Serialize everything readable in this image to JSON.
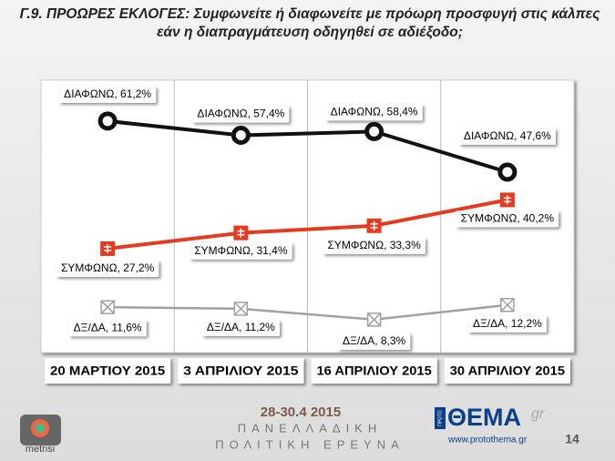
{
  "chart_data": {
    "type": "line",
    "title": "Γ.9. ΠΡΟΩΡΕΣ ΕΚΛΟΓΕΣ: Συμφωνείτε ή διαφωνείτε με πρόωρη προσφυγή στις κάλπες εάν η διαπραγμάτευση οδηγηθεί σε αδιέξοδο;",
    "categories": [
      "20 ΜΑΡΤΙΟΥ 2015",
      "3 ΑΠΡΙΛΙΟΥ 2015",
      "16 ΑΠΡΙΛΙΟΥ 2015",
      "30 ΑΠΡΙΛΙΟΥ 2015"
    ],
    "series": [
      {
        "name": "ΔΙΑΦΩΝΩ",
        "color": "#111111",
        "values": [
          61.2,
          57.4,
          58.4,
          47.6
        ],
        "value_labels": [
          "ΔΙΑΦΩΝΩ, 61,2%",
          "ΔΙΑΦΩΝΩ, 57,4%",
          "ΔΙΑΦΩΝΩ, 58,4%",
          "ΔΙΑΦΩΝΩ, 47,6%"
        ]
      },
      {
        "name": "ΣΥΜΦΩΝΩ",
        "color": "#e8391f",
        "values": [
          27.2,
          31.4,
          33.3,
          40.2
        ],
        "value_labels": [
          "ΣΥΜΦΩΝΩ, 27,2%",
          "ΣΥΜΦΩΝΩ, 31,4%",
          "ΣΥΜΦΩΝΩ, 33,3%",
          "ΣΥΜΦΩΝΩ, 40,2%"
        ]
      },
      {
        "name": "ΔΞ/ΔΑ",
        "color": "#a0a0a0",
        "values": [
          11.6,
          11.2,
          8.3,
          12.2
        ],
        "value_labels": [
          "ΔΞ/ΔΑ, 11,6%",
          "ΔΞ/ΔΑ, 11,2%",
          "ΔΞ/ΔΑ, 8,3%",
          "ΔΞ/ΔΑ, 12,2%"
        ]
      }
    ]
  },
  "footer": {
    "dates": "28-30.4 2015",
    "line1": "ΠΑΝΕΛΛΑΔΙΚΗ",
    "line2": "ΠΟΛΙΤΙΚΗ ΕΡΕΥΝΑ",
    "logo": "metrisi",
    "paper": "ΘΕΜΑ",
    "paper_suffix": "gr",
    "paper_prefix": "ΠΡΩΤΟ",
    "url": "www.protothema.gr",
    "page": "14"
  }
}
